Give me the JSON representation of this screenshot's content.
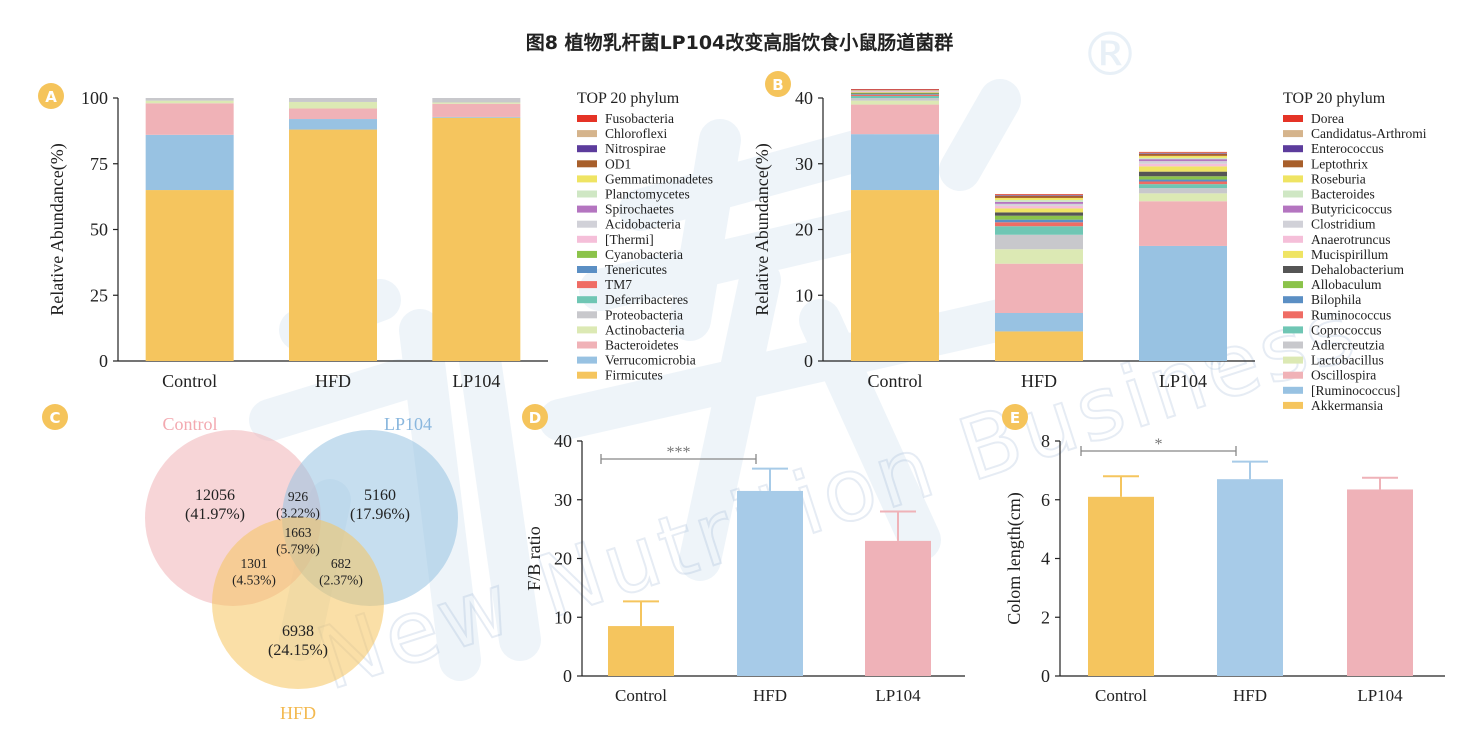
{
  "figure_title": "图8  植物乳杆菌LP104改变高脂饮食小鼠肠道菌群",
  "watermark": {
    "text": "New Nutrition Business",
    "symbol": "®"
  },
  "panels": {
    "A": "A",
    "B": "B",
    "C": "C",
    "D": "D",
    "E": "E"
  },
  "colors": {
    "badge": "#f5c45b"
  },
  "chart_data": [
    {
      "panel": "A",
      "type": "bar",
      "stacked": true,
      "categories": [
        "Control",
        "HFD",
        "LP104"
      ],
      "ylabel": "Relative Abundance(%)",
      "xlabel": "",
      "ylim": [
        0,
        100
      ],
      "yticks": [
        0,
        25,
        50,
        75,
        100
      ],
      "legend_title": "TOP 20 phylum",
      "legend_position": "right",
      "series": [
        {
          "name": "Firmicutes",
          "color": "#f5c55e",
          "values": [
            65,
            88,
            92.5
          ]
        },
        {
          "name": "Verrucomicrobia",
          "color": "#98c2e2",
          "values": [
            21,
            4,
            0.3
          ]
        },
        {
          "name": "Bacteroidetes",
          "color": "#f0b2b7",
          "values": [
            12,
            4,
            5
          ]
        },
        {
          "name": "Actinobacteria",
          "color": "#dce9b4",
          "values": [
            1,
            2.5,
            0.5
          ]
        },
        {
          "name": "Proteobacteria",
          "color": "#c8c8cc",
          "values": [
            1,
            1.5,
            1.7
          ]
        },
        {
          "name": "Deferribacteres",
          "color": "#6fc6b4",
          "values": [
            0,
            0,
            0
          ]
        },
        {
          "name": "TM7",
          "color": "#ef6c64",
          "values": [
            0,
            0,
            0
          ]
        },
        {
          "name": "Tenericutes",
          "color": "#5b8fc4",
          "values": [
            0,
            0,
            0
          ]
        },
        {
          "name": "Cyanobacteria",
          "color": "#8bc34a",
          "values": [
            0,
            0,
            0
          ]
        },
        {
          "name": "[Thermi]",
          "color": "#f5bfd9",
          "values": [
            0,
            0,
            0
          ]
        },
        {
          "name": "Acidobacteria",
          "color": "#d1d1d8",
          "values": [
            0,
            0,
            0
          ]
        },
        {
          "name": "Spirochaetes",
          "color": "#b475c0",
          "values": [
            0,
            0,
            0
          ]
        },
        {
          "name": "Planctomycetes",
          "color": "#cfe7c4",
          "values": [
            0,
            0,
            0
          ]
        },
        {
          "name": "Gemmatimonadetes",
          "color": "#efe463",
          "values": [
            0,
            0,
            0
          ]
        },
        {
          "name": "OD1",
          "color": "#a85f2b",
          "values": [
            0,
            0,
            0
          ]
        },
        {
          "name": "Nitrospirae",
          "color": "#5c3c9c",
          "values": [
            0,
            0,
            0
          ]
        },
        {
          "name": "Chloroflexi",
          "color": "#d5b48c",
          "values": [
            0,
            0,
            0
          ]
        },
        {
          "name": "Fusobacteria",
          "color": "#e53326",
          "values": [
            0,
            0,
            0
          ]
        }
      ]
    },
    {
      "panel": "B",
      "type": "bar",
      "stacked": true,
      "categories": [
        "Control",
        "HFD",
        "LP104"
      ],
      "ylabel": "Relative Abundance(%)",
      "xlabel": "",
      "ylim": [
        0,
        40
      ],
      "yticks": [
        0,
        10,
        20,
        30,
        40
      ],
      "legend_title": "TOP 20 phylum",
      "legend_position": "right",
      "series": [
        {
          "name": "Akkermansia",
          "color": "#f5c55e",
          "values": [
            26,
            4.5,
            0
          ]
        },
        {
          "name": "[Ruminococcus]",
          "color": "#98c2e2",
          "values": [
            8.5,
            2.8,
            17.5
          ]
        },
        {
          "name": "Oscillospira",
          "color": "#f0b2b7",
          "values": [
            4.5,
            7.5,
            6.8
          ]
        },
        {
          "name": "Lactobacillus",
          "color": "#dce9b4",
          "values": [
            0.6,
            2.2,
            1.2
          ]
        },
        {
          "name": "Adlercreutzia",
          "color": "#c8c8cc",
          "values": [
            0.4,
            2.2,
            0.8
          ]
        },
        {
          "name": "Coprococcus",
          "color": "#6fc6b4",
          "values": [
            0.3,
            1.3,
            0.6
          ]
        },
        {
          "name": "Ruminococcus",
          "color": "#ef6c64",
          "values": [
            0.2,
            0.6,
            0.4
          ]
        },
        {
          "name": "Bilophila",
          "color": "#5b8fc4",
          "values": [
            0.1,
            0.4,
            0.3
          ]
        },
        {
          "name": "Allobaculum",
          "color": "#8bc34a",
          "values": [
            0.1,
            0.6,
            0.5
          ]
        },
        {
          "name": "Dehalobacterium",
          "color": "#555555",
          "values": [
            0.1,
            0.5,
            0.7
          ]
        },
        {
          "name": "Mucispirillum",
          "color": "#efe463",
          "values": [
            0.1,
            0.6,
            0.8
          ]
        },
        {
          "name": "Anaerotruncus",
          "color": "#f5bfd9",
          "values": [
            0.1,
            0.4,
            0.4
          ]
        },
        {
          "name": "Clostridium",
          "color": "#d1d1d8",
          "values": [
            0.1,
            0.3,
            0.4
          ]
        },
        {
          "name": "Butyricicoccus",
          "color": "#b475c0",
          "values": [
            0.05,
            0.3,
            0.3
          ]
        },
        {
          "name": "Bacteroides",
          "color": "#cfe7c4",
          "values": [
            0.05,
            0.3,
            0.2
          ]
        },
        {
          "name": "Roseburia",
          "color": "#efe463",
          "values": [
            0.05,
            0.3,
            0.3
          ]
        },
        {
          "name": "Leptothrix",
          "color": "#a85f2b",
          "values": [
            0.05,
            0.3,
            0.3
          ]
        },
        {
          "name": "Enterococcus",
          "color": "#5c3c9c",
          "values": [
            0.02,
            0.1,
            0.1
          ]
        },
        {
          "name": "Candidatus-Arthromi",
          "color": "#d5b48c",
          "values": [
            0.02,
            0.1,
            0.1
          ]
        },
        {
          "name": "Dorea",
          "color": "#e53326",
          "values": [
            0.02,
            0.1,
            0.1
          ]
        }
      ]
    },
    {
      "panel": "C",
      "type": "venn",
      "sets": [
        {
          "name": "Control",
          "color": "#f0b2b7",
          "label_color": "#f3a9b0"
        },
        {
          "name": "LP104",
          "color": "#98c2e2",
          "label_color": "#8ab7de"
        },
        {
          "name": "HFD",
          "color": "#f5c55e",
          "label_color": "#f3b94f"
        }
      ],
      "regions": [
        {
          "sets": [
            "Control"
          ],
          "count": "12056",
          "percent": "(41.97%)"
        },
        {
          "sets": [
            "Control",
            "LP104"
          ],
          "count": "926",
          "percent": "(3.22%)"
        },
        {
          "sets": [
            "LP104"
          ],
          "count": "5160",
          "percent": "(17.96%)"
        },
        {
          "sets": [
            "Control",
            "LP104",
            "HFD"
          ],
          "count": "1663",
          "percent": "(5.79%)"
        },
        {
          "sets": [
            "Control",
            "HFD"
          ],
          "count": "1301",
          "percent": "(4.53%)"
        },
        {
          "sets": [
            "LP104",
            "HFD"
          ],
          "count": "682",
          "percent": "(2.37%)"
        },
        {
          "sets": [
            "HFD"
          ],
          "count": "6938",
          "percent": "(24.15%)"
        }
      ]
    },
    {
      "panel": "D",
      "type": "bar",
      "categories": [
        "Control",
        "HFD",
        "LP104"
      ],
      "values": [
        8.5,
        31.5,
        23
      ],
      "errors": [
        4.2,
        3.8,
        5
      ],
      "colors": [
        "#f5c55e",
        "#a7cbe8",
        "#efb2b8"
      ],
      "ylabel": "F/B ratio",
      "xlabel": "",
      "ylim": [
        0,
        40
      ],
      "yticks": [
        0,
        10,
        20,
        30,
        40
      ],
      "significance": {
        "between": [
          "Control",
          "HFD"
        ],
        "label": "***"
      }
    },
    {
      "panel": "E",
      "type": "bar",
      "categories": [
        "Control",
        "HFD",
        "LP104"
      ],
      "values": [
        6.1,
        6.7,
        6.35
      ],
      "errors": [
        0.7,
        0.6,
        0.4
      ],
      "colors": [
        "#f5c55e",
        "#a7cbe8",
        "#efb2b8"
      ],
      "ylabel": "Colom length(cm)",
      "xlabel": "",
      "ylim": [
        0,
        8
      ],
      "yticks": [
        0,
        2,
        4,
        6,
        8
      ],
      "significance": {
        "between": [
          "Control",
          "HFD"
        ],
        "label": "*"
      }
    }
  ]
}
